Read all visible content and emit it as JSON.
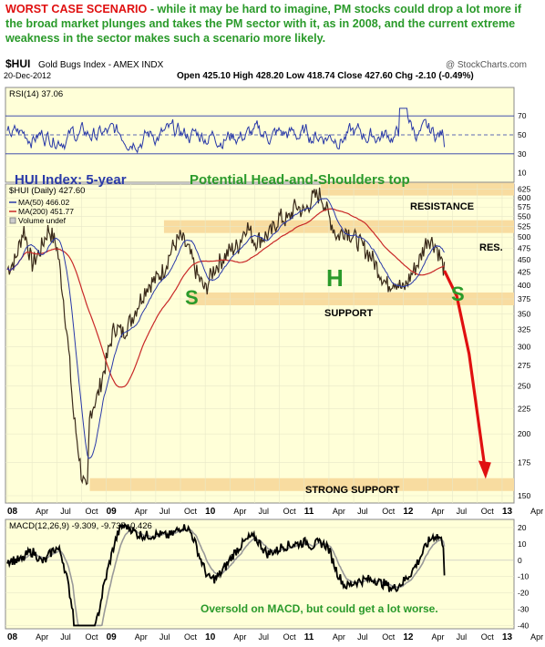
{
  "caption": {
    "highlight": "WORST CASE SCENARIO",
    "text": " - while it may be hard to imagine, PM stocks could drop a lot more if the broad market plunges and takes the PM sector with it, as in 2008, and the current extreme weakness in the sector makes such a scenario more likely."
  },
  "header": {
    "symbol": "$HUI",
    "name": "Gold Bugs Index - AMEX INDX",
    "watermark": "@ StockCharts.com",
    "date": "20-Dec-2012",
    "quote": "Open 425.10  High 428.20  Low 418.74  Close 427.60  Chg -2.10 (-0.49%)"
  },
  "colors": {
    "panel_bg": "#ffffd8",
    "band": "#f8dca0",
    "annotation_green": "#2a9a2a",
    "annotation_blue": "#2a3aa8",
    "arrow_red": "#e01010",
    "ma200": "#c82828",
    "ma50": "#2838a8"
  },
  "chart_data": [
    {
      "type": "line",
      "panel": "rsi",
      "title": "RSI(14) 37.06",
      "ylim": [
        0,
        100
      ],
      "y_ticks": [
        10,
        30,
        50,
        70
      ],
      "reference_lines": [
        30,
        50,
        70
      ],
      "series": [
        {
          "name": "RSI(14)",
          "last": 37.06
        }
      ]
    },
    {
      "type": "line",
      "panel": "price",
      "title": "$HUI (Daily) 427.60",
      "scale": "log",
      "ylim": [
        145,
        640
      ],
      "y_ticks": [
        150,
        175,
        200,
        225,
        250,
        275,
        300,
        325,
        350,
        375,
        400,
        425,
        450,
        475,
        500,
        525,
        550,
        575,
        600,
        625
      ],
      "x_ticks": [
        "08",
        "Apr",
        "Jul",
        "Oct",
        "09",
        "Apr",
        "Jul",
        "Oct",
        "10",
        "Apr",
        "Jul",
        "Oct",
        "11",
        "Apr",
        "Jul",
        "Oct",
        "12",
        "Apr",
        "Jul",
        "Oct",
        "13",
        "Apr"
      ],
      "series": [
        {
          "name": "$HUI (Daily)",
          "last": 427.6,
          "points": [
            [
              0,
              430
            ],
            [
              1,
              450
            ],
            [
              2,
              520
            ],
            [
              3,
              440
            ],
            [
              4,
              470
            ],
            [
              5,
              520
            ],
            [
              6,
              480
            ],
            [
              7,
              350
            ],
            [
              8,
              220
            ],
            [
              9,
              165
            ],
            [
              9.7,
              150
            ],
            [
              10,
              220
            ],
            [
              11,
              240
            ],
            [
              12,
              280
            ],
            [
              13,
              330
            ],
            [
              14,
              320
            ],
            [
              15,
              340
            ],
            [
              16,
              370
            ],
            [
              17,
              400
            ],
            [
              18,
              410
            ],
            [
              19,
              430
            ],
            [
              20,
              475
            ],
            [
              21,
              500
            ],
            [
              22,
              470
            ],
            [
              23,
              420
            ],
            [
              24,
              390
            ],
            [
              25,
              430
            ],
            [
              26,
              450
            ],
            [
              27,
              470
            ],
            [
              28,
              480
            ],
            [
              29,
              530
            ],
            [
              30,
              490
            ],
            [
              31,
              500
            ],
            [
              32,
              510
            ],
            [
              33,
              550
            ],
            [
              34,
              540
            ],
            [
              35,
              580
            ],
            [
              36,
              560
            ],
            [
              37,
              600
            ],
            [
              38,
              610
            ],
            [
              39,
              550
            ],
            [
              40,
              500
            ],
            [
              41,
              520
            ],
            [
              42,
              500
            ],
            [
              43,
              480
            ],
            [
              44,
              460
            ],
            [
              45,
              430
            ],
            [
              46,
              400
            ],
            [
              47,
              410
            ],
            [
              48,
              390
            ],
            [
              49,
              420
            ],
            [
              50,
              450
            ],
            [
              51,
              500
            ],
            [
              52,
              480
            ],
            [
              53,
              427.6
            ]
          ]
        },
        {
          "name": "MA(50)",
          "last": 466.02
        },
        {
          "name": "MA(200)",
          "last": 451.77
        },
        {
          "name": "Volume undef"
        }
      ],
      "projection": [
        [
          53,
          427.6
        ],
        [
          54.5,
          380
        ],
        [
          56,
          290
        ],
        [
          58,
          165
        ]
      ],
      "annotations": [
        "HUI Index: 5-year",
        "Potential Head-and-Shoulders top",
        "H",
        "S",
        "S",
        "RESISTANCE",
        "RES.",
        "SUPPORT",
        "STRONG SUPPORT"
      ],
      "bands": [
        {
          "label": "RESISTANCE",
          "value": 625,
          "from_x": 38
        },
        {
          "label": "RES.",
          "value": 525,
          "from_x": 19
        },
        {
          "label": "SUPPORT",
          "value": 375,
          "from_x": 22
        },
        {
          "label": "STRONG SUPPORT",
          "value": 158,
          "from_x": 10
        }
      ]
    },
    {
      "type": "line",
      "panel": "macd",
      "title": "MACD(12,26,9) -9.309, -9.735, 0.426",
      "ylim": [
        -42,
        25
      ],
      "y_ticks": [
        -40,
        -30,
        -20,
        -10,
        0,
        10,
        20
      ],
      "series": [
        {
          "name": "MACD",
          "last": -9.309
        },
        {
          "name": "Signal",
          "last": -9.735
        },
        {
          "name": "Histogram",
          "last": 0.426
        }
      ],
      "annotation": "Oversold on MACD, but could get a lot worse.",
      "x_ticks": [
        "08",
        "Apr",
        "Jul",
        "Oct",
        "09",
        "Apr",
        "Jul",
        "Oct",
        "10",
        "Apr",
        "Jul",
        "Oct",
        "11",
        "Apr",
        "Jul",
        "Oct",
        "12",
        "Apr",
        "Jul",
        "Oct",
        "13",
        "Apr"
      ]
    }
  ],
  "labels": {
    "rsi_title": "RSI(14) 37.06",
    "price_title": "$HUI (Daily) 427.60",
    "ma50": "MA(50) 466.02",
    "ma200": "MA(200) 451.77",
    "volume": "Volume undef",
    "hui_label": "HUI Index: 5-year",
    "hs_title": "Potential Head-and-Shoulders top",
    "head": "H",
    "shoulder": "S",
    "resistance": "RESISTANCE",
    "res": "RES.",
    "support": "SUPPORT",
    "strong_support": "STRONG SUPPORT",
    "macd_title": "MACD(12,26,9) -9.309, -9.735, 0.426",
    "macd_note": "Oversold on MACD, but could get a lot worse."
  }
}
